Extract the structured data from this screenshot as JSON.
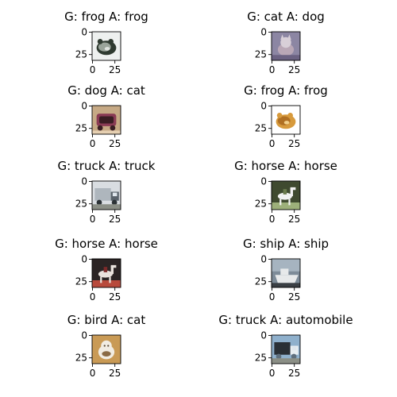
{
  "chart_data": {
    "type": "image-grid",
    "rows": 5,
    "cols": 2,
    "image_size": [
      32,
      32
    ],
    "x_ticks": [
      "0",
      "25"
    ],
    "y_ticks": [
      "0",
      "25"
    ],
    "panels": [
      {
        "title": "G: frog A: frog",
        "ground_truth": "frog",
        "prediction": "frog",
        "thumbnail": {
          "subject": "frog-icon",
          "bg": "#eef0ef",
          "colors": [
            "#2f3a30",
            "#9aa49a",
            "#dfe3df"
          ]
        }
      },
      {
        "title": "G: cat A: dog",
        "ground_truth": "cat",
        "prediction": "dog",
        "thumbnail": {
          "subject": "cat-icon",
          "bg": "#8c86a3",
          "colors": [
            "#d8cfd8",
            "#6b6282",
            "#b9a7b6"
          ]
        }
      },
      {
        "title": "G: dog A: cat",
        "ground_truth": "dog",
        "prediction": "cat",
        "thumbnail": {
          "subject": "dog-icon",
          "bg": "#c6a985",
          "colors": [
            "#3a1d23",
            "#8a3b55",
            "#e6d0b2"
          ]
        }
      },
      {
        "title": "G: frog A: frog",
        "ground_truth": "frog",
        "prediction": "frog",
        "thumbnail": {
          "subject": "frog-icon",
          "bg": "#ffffff",
          "colors": [
            "#d79a3c",
            "#b06f22",
            "#f2d08a"
          ]
        }
      },
      {
        "title": "G: truck A: truck",
        "ground_truth": "truck",
        "prediction": "truck",
        "thumbnail": {
          "subject": "truck-icon",
          "bg": "#d9dde1",
          "colors": [
            "#59626a",
            "#aeb6bd",
            "#2c3236"
          ]
        }
      },
      {
        "title": "G: horse A: horse",
        "ground_truth": "horse",
        "prediction": "horse",
        "thumbnail": {
          "subject": "horse-icon",
          "bg": "#3f4a2f",
          "colors": [
            "#f2f2f2",
            "#6a7a4c",
            "#9db07a"
          ]
        }
      },
      {
        "title": "G: horse A: horse",
        "ground_truth": "horse",
        "prediction": "horse",
        "thumbnail": {
          "subject": "horse-icon",
          "bg": "#2b2424",
          "colors": [
            "#e9e2dc",
            "#7c2a2a",
            "#b84a3c"
          ]
        }
      },
      {
        "title": "G: ship A: ship",
        "ground_truth": "ship",
        "prediction": "ship",
        "thumbnail": {
          "subject": "ship-icon",
          "bg": "#7d8b98",
          "colors": [
            "#e7e9ea",
            "#3a3f44",
            "#a6b4c0"
          ]
        }
      },
      {
        "title": "G: bird A: cat",
        "ground_truth": "bird",
        "prediction": "cat",
        "thumbnail": {
          "subject": "bird-icon",
          "bg": "#c99a55",
          "colors": [
            "#f1ece2",
            "#8a6a44",
            "#5a4a36"
          ]
        }
      },
      {
        "title": "G: truck A: automobile",
        "ground_truth": "truck",
        "prediction": "automobile",
        "thumbnail": {
          "subject": "truck-icon",
          "bg": "#8fb0cc",
          "colors": [
            "#e8eef2",
            "#2a2f35",
            "#5f6f7d"
          ]
        }
      }
    ]
  }
}
